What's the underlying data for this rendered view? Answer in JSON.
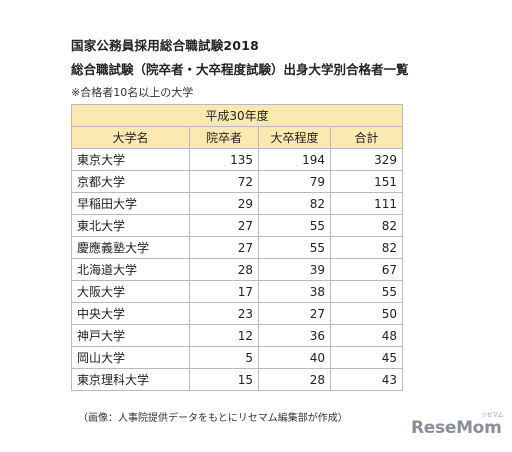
{
  "heading": {
    "line1": "国家公務員採用総合職試験2018",
    "line2": "総合職試験（院卒者・大卒程度試験）出身大学別合格者一覧",
    "note": "※合格者10名以上の大学"
  },
  "table": {
    "period": "平成30年度",
    "columns": [
      "大学名",
      "院卒者",
      "大卒程度",
      "合計"
    ],
    "rows": [
      [
        "東京大学",
        "135",
        "194",
        "329"
      ],
      [
        "京都大学",
        "72",
        "79",
        "151"
      ],
      [
        "早稲田大学",
        "29",
        "82",
        "111"
      ],
      [
        "東北大学",
        "27",
        "55",
        "82"
      ],
      [
        "慶應義塾大学",
        "27",
        "55",
        "82"
      ],
      [
        "北海道大学",
        "28",
        "39",
        "67"
      ],
      [
        "大阪大学",
        "17",
        "38",
        "55"
      ],
      [
        "中央大学",
        "23",
        "27",
        "50"
      ],
      [
        "神戸大学",
        "12",
        "36",
        "48"
      ],
      [
        "岡山大学",
        "5",
        "40",
        "45"
      ],
      [
        "東京理科大学",
        "15",
        "28",
        "43"
      ]
    ]
  },
  "caption": "（画像：人事院提供データをもとにリセマム編集部が作成）",
  "logo": {
    "text": "ReseMom",
    "sub": "リセマム"
  }
}
